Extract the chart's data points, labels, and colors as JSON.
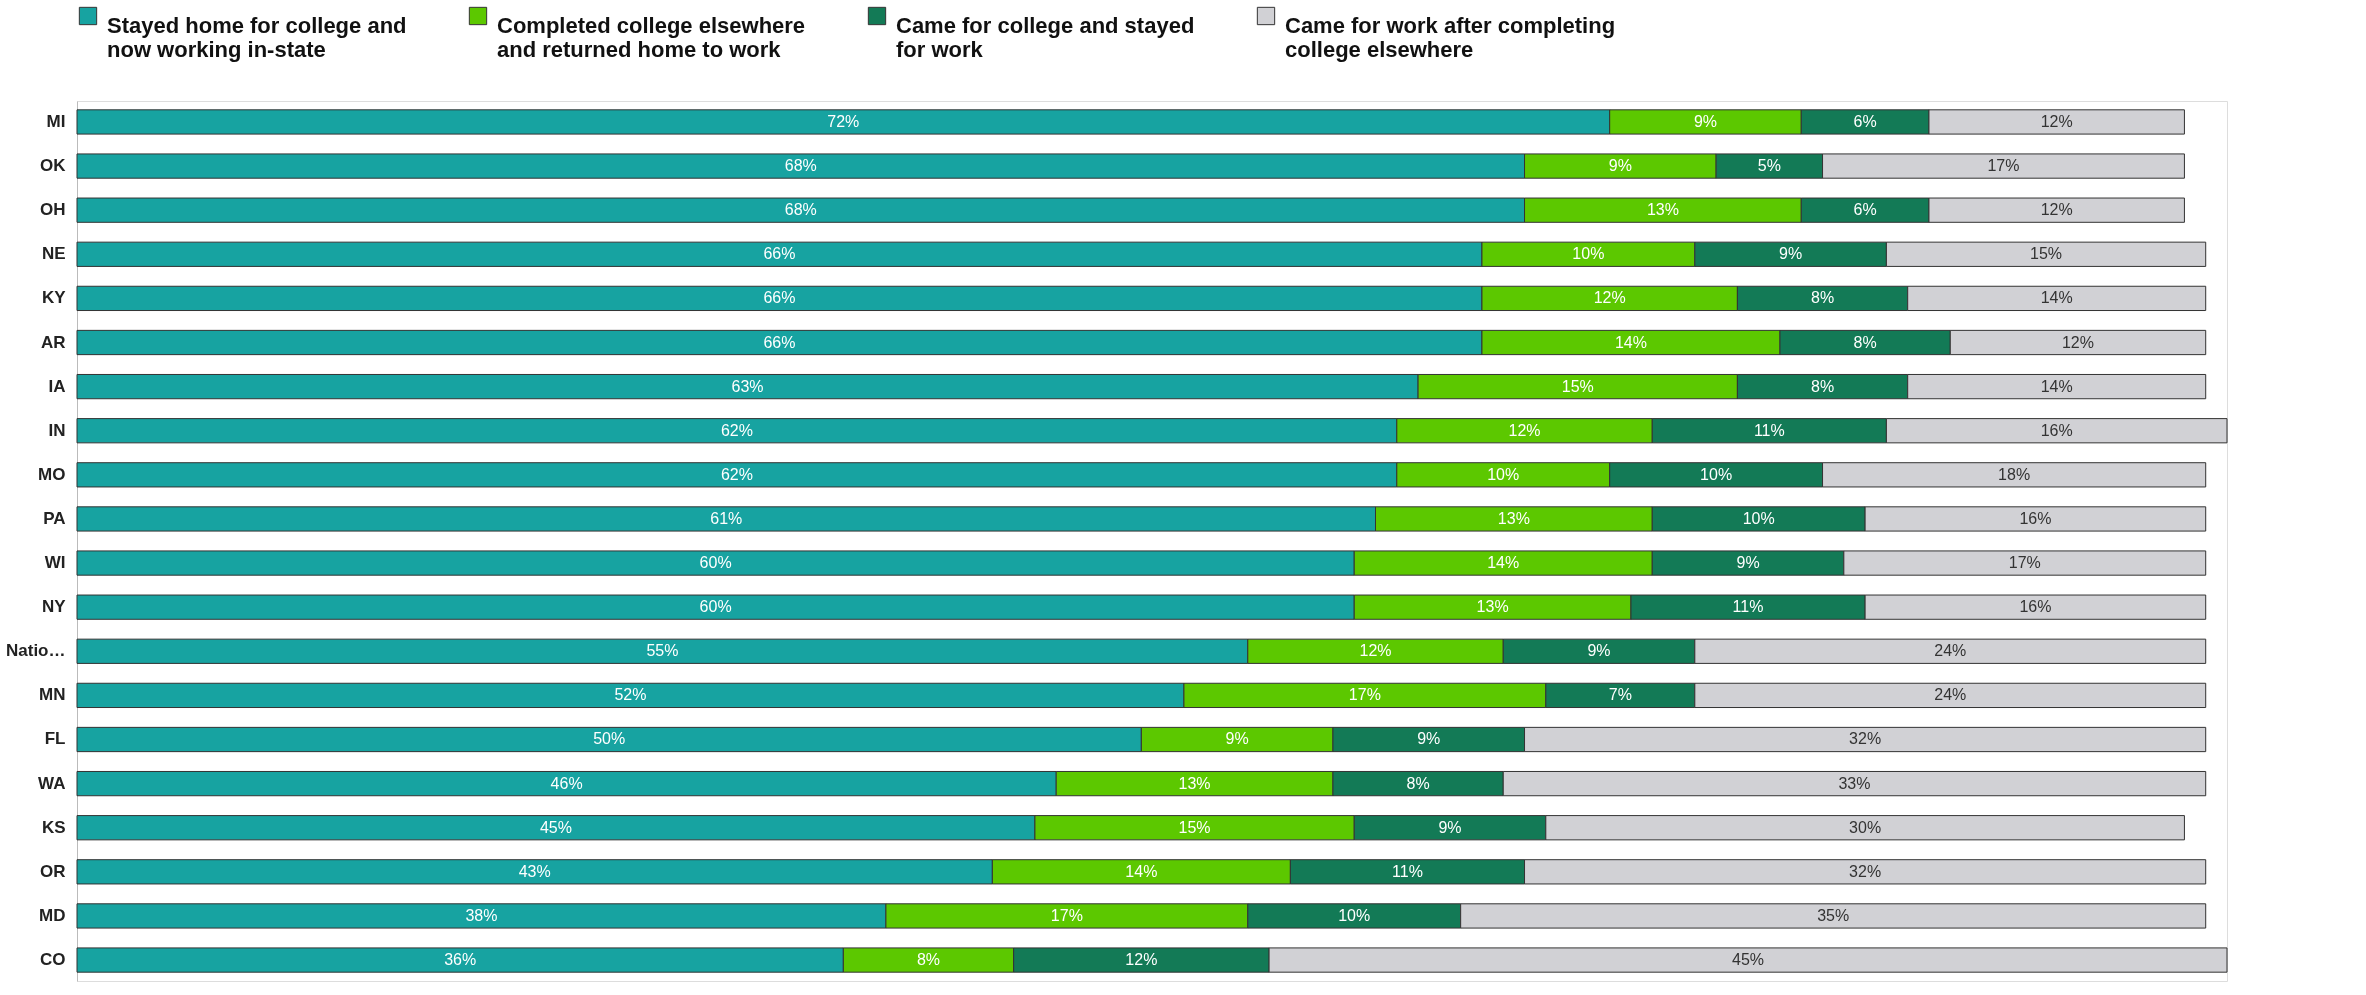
{
  "chart_data": {
    "type": "bar",
    "orientation": "horizontal",
    "stacked": true,
    "legend": "top",
    "tick_labels": "y",
    "grid": false,
    "categories": [
      "MI",
      "OK",
      "OH",
      "NE",
      "KY",
      "AR",
      "IA",
      "IN",
      "MO",
      "PA",
      "WI",
      "NY",
      "Natio…",
      "MN",
      "FL",
      "WA",
      "KS",
      "OR",
      "MD",
      "CO"
    ],
    "series": [
      {
        "name": "Stayed home for college and now working in-state",
        "color": "#17a3a1",
        "values": [
          72,
          68,
          68,
          66,
          66,
          66,
          63,
          62,
          62,
          61,
          60,
          60,
          55,
          52,
          50,
          46,
          45,
          43,
          38,
          36
        ],
        "value_labels": [
          "72%",
          "68%",
          "68%",
          "66%",
          "66%",
          "66%",
          "63%",
          "62%",
          "62%",
          "61%",
          "60%",
          "60%",
          "55%",
          "52%",
          "50%",
          "46%",
          "45%",
          "43%",
          "38%",
          "36%"
        ]
      },
      {
        "name": "Completed college elsewhere and returned home to work",
        "color": "#5cc800",
        "values": [
          9,
          9,
          13,
          10,
          12,
          14,
          15,
          12,
          10,
          13,
          14,
          13,
          12,
          17,
          9,
          13,
          15,
          14,
          17,
          8
        ],
        "value_labels": [
          "9%",
          "9%",
          "13%",
          "10%",
          "12%",
          "14%",
          "15%",
          "12%",
          "10%",
          "13%",
          "14%",
          "13%",
          "12%",
          "17%",
          "9%",
          "13%",
          "15%",
          "14%",
          "17%",
          "8%"
        ]
      },
      {
        "name": "Came for college and stayed for work",
        "color": "#137a56",
        "values": [
          6,
          5,
          6,
          9,
          8,
          8,
          8,
          11,
          10,
          10,
          9,
          11,
          9,
          7,
          9,
          8,
          9,
          11,
          10,
          12
        ],
        "value_labels": [
          "6%",
          "5%",
          "6%",
          "9%",
          "8%",
          "8%",
          "8%",
          "11%",
          "10%",
          "10%",
          "9%",
          "11%",
          "9%",
          "7%",
          "9%",
          "8%",
          "9%",
          "11%",
          "10%",
          "12%"
        ]
      },
      {
        "name": "Came for work after completing college elsewhere",
        "color": "#d1d1d5",
        "values": [
          12,
          17,
          12,
          15,
          14,
          12,
          14,
          16,
          18,
          16,
          17,
          16,
          24,
          24,
          32,
          33,
          30,
          32,
          35,
          45
        ],
        "value_labels": [
          "12%",
          "17%",
          "12%",
          "15%",
          "14%",
          "12%",
          "14%",
          "16%",
          "18%",
          "16%",
          "17%",
          "16%",
          "24%",
          "24%",
          "32%",
          "33%",
          "30%",
          "32%",
          "35%",
          "45%"
        ]
      }
    ]
  }
}
